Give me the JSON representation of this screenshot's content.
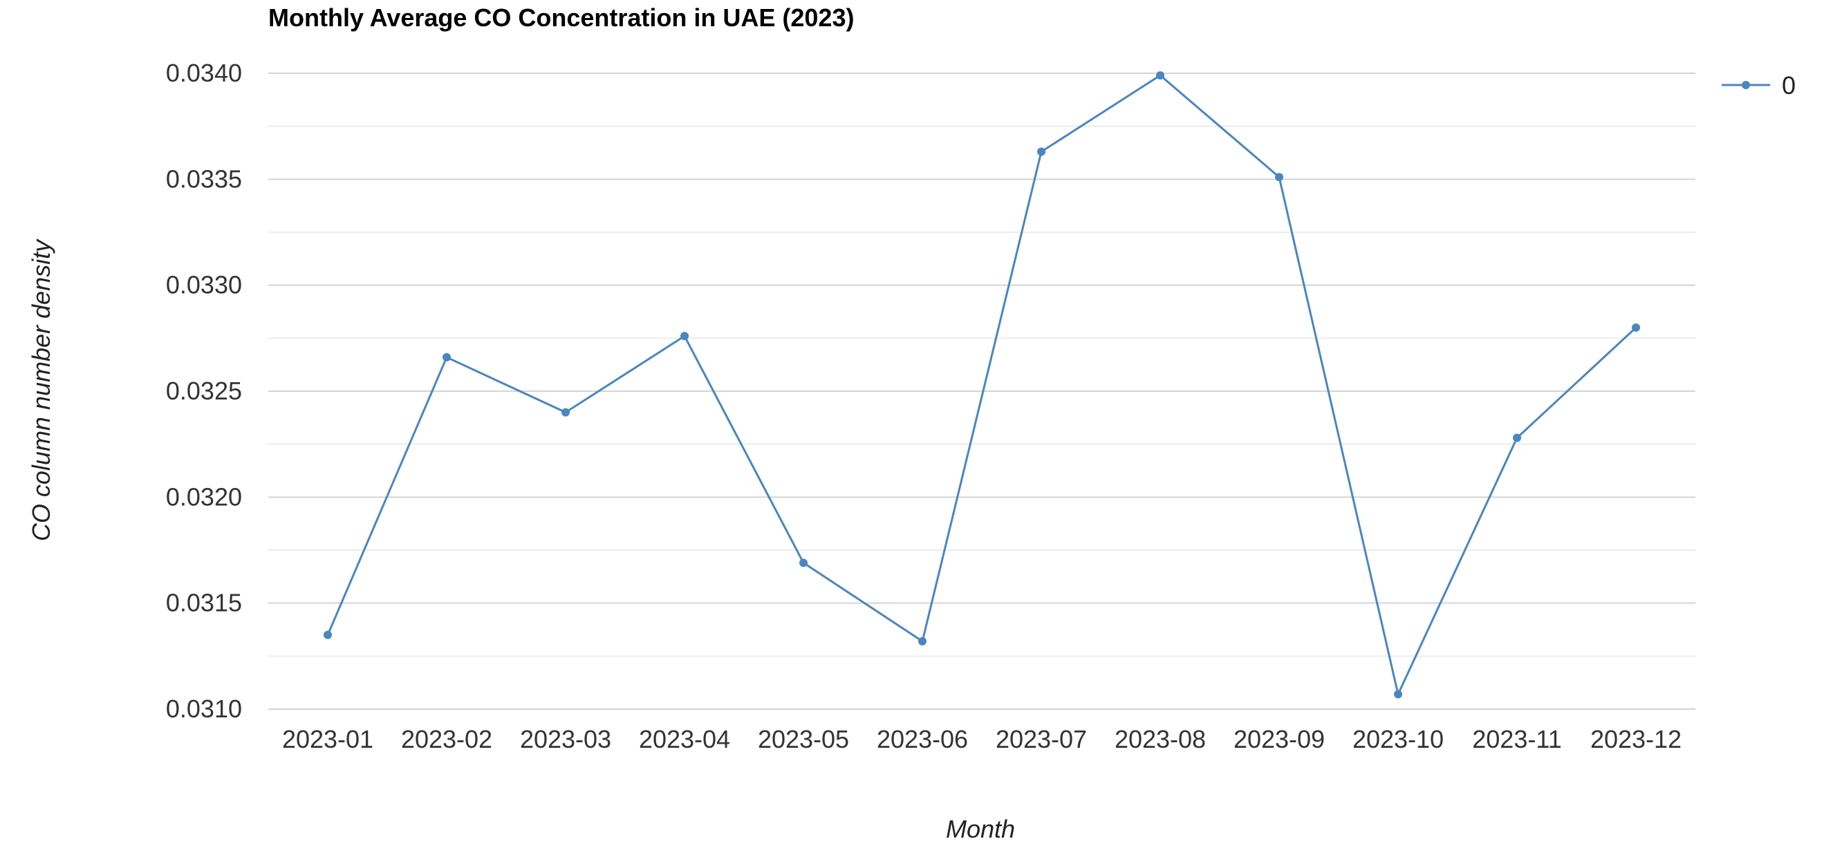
{
  "chart_data": {
    "type": "line",
    "title": "Monthly Average CO Concentration in UAE (2023)",
    "xlabel": "Month",
    "ylabel": "CO column number density",
    "categories": [
      "2023-01",
      "2023-02",
      "2023-03",
      "2023-04",
      "2023-05",
      "2023-06",
      "2023-07",
      "2023-08",
      "2023-09",
      "2023-10",
      "2023-11",
      "2023-12"
    ],
    "series": [
      {
        "name": "0",
        "values": [
          0.03135,
          0.03266,
          0.0324,
          0.03276,
          0.03169,
          0.03132,
          0.03363,
          0.03399,
          0.03351,
          0.03107,
          0.03228,
          0.0328
        ]
      }
    ],
    "ylim": [
      0.031,
      0.034
    ],
    "yticks": [
      "0.0310",
      "0.0315",
      "0.0320",
      "0.0325",
      "0.0330",
      "0.0335",
      "0.0340"
    ],
    "grid": true,
    "legend_position": "top-right",
    "colors": {
      "series": "#4a86c0",
      "grid_major": "#d4d4d4",
      "grid_minor": "#ececec"
    }
  }
}
